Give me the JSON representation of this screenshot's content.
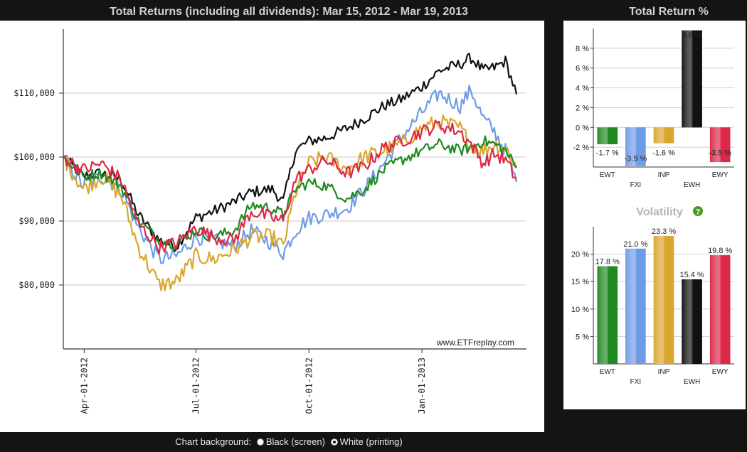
{
  "main_title": "Total Returns (including all dividends): Mar 15, 2012 - Mar 19, 2013",
  "total_return_title": "Total Return %",
  "volatility_title": "Volatility",
  "watermark": "www.ETFreplay.com",
  "background_control": {
    "label": "Chart background:",
    "options": [
      "Black (screen)",
      "White (printing)"
    ],
    "selected": "White (printing)"
  },
  "colors": {
    "EWT": "#1f8a1f",
    "FXI": "#6f9be6",
    "INP": "#d9a62e",
    "EWH": "#111111",
    "EWY": "#dc2848"
  },
  "chart_data": [
    {
      "type": "line",
      "title": "Total Returns (including all dividends): Mar 15, 2012 - Mar 19, 2013",
      "x_ticks": [
        "Apr-01-2012",
        "Jul-01-2012",
        "Oct-01-2012",
        "Jan-01-2013"
      ],
      "y_ticks": [
        "$80,000",
        "$90,000",
        "$100,000",
        "$110,000"
      ],
      "ylim": [
        70000,
        120000
      ],
      "x_range": [
        "2012-03-15",
        "2013-03-19"
      ],
      "grid": true,
      "series": [
        {
          "ticker": "EWH",
          "points": [
            [
              "2012-03-15",
              100000
            ],
            [
              "2012-03-31",
              97000
            ],
            [
              "2012-04-15",
              97500
            ],
            [
              "2012-05-01",
              96500
            ],
            [
              "2012-05-15",
              91000
            ],
            [
              "2012-06-01",
              87000
            ],
            [
              "2012-06-15",
              86000
            ],
            [
              "2012-07-01",
              90500
            ],
            [
              "2012-07-15",
              91500
            ],
            [
              "2012-08-01",
              93000
            ],
            [
              "2012-08-15",
              94500
            ],
            [
              "2012-09-01",
              95000
            ],
            [
              "2012-09-10",
              93000
            ],
            [
              "2012-09-20",
              101000
            ],
            [
              "2012-10-01",
              102500
            ],
            [
              "2012-10-15",
              103000
            ],
            [
              "2012-11-01",
              104500
            ],
            [
              "2012-11-15",
              106000
            ],
            [
              "2012-12-01",
              108000
            ],
            [
              "2012-12-15",
              109000
            ],
            [
              "2013-01-01",
              111000
            ],
            [
              "2013-01-15",
              113500
            ],
            [
              "2013-02-01",
              114500
            ],
            [
              "2013-02-10",
              115500
            ],
            [
              "2013-02-20",
              113500
            ],
            [
              "2013-03-01",
              114000
            ],
            [
              "2013-03-10",
              115000
            ],
            [
              "2013-03-19",
              109800
            ]
          ]
        },
        {
          "ticker": "FXI",
          "points": [
            [
              "2012-03-15",
              100000
            ],
            [
              "2012-03-31",
              95500
            ],
            [
              "2012-04-15",
              97000
            ],
            [
              "2012-05-01",
              95000
            ],
            [
              "2012-05-15",
              89000
            ],
            [
              "2012-06-01",
              84000
            ],
            [
              "2012-06-15",
              84500
            ],
            [
              "2012-07-01",
              87500
            ],
            [
              "2012-07-15",
              87000
            ],
            [
              "2012-08-01",
              86000
            ],
            [
              "2012-08-15",
              88500
            ],
            [
              "2012-09-01",
              86500
            ],
            [
              "2012-09-10",
              85000
            ],
            [
              "2012-09-20",
              88500
            ],
            [
              "2012-10-01",
              90500
            ],
            [
              "2012-10-15",
              91000
            ],
            [
              "2012-11-01",
              92000
            ],
            [
              "2012-11-15",
              95000
            ],
            [
              "2012-12-01",
              99000
            ],
            [
              "2012-12-15",
              103000
            ],
            [
              "2013-01-01",
              107000
            ],
            [
              "2013-01-15",
              110000
            ],
            [
              "2013-02-01",
              108000
            ],
            [
              "2013-02-10",
              110500
            ],
            [
              "2013-02-20",
              106000
            ],
            [
              "2013-03-01",
              104000
            ],
            [
              "2013-03-10",
              101000
            ],
            [
              "2013-03-19",
              96100
            ]
          ]
        },
        {
          "ticker": "INP",
          "points": [
            [
              "2012-03-15",
              100000
            ],
            [
              "2012-03-31",
              95000
            ],
            [
              "2012-04-15",
              97000
            ],
            [
              "2012-05-01",
              94000
            ],
            [
              "2012-05-15",
              86000
            ],
            [
              "2012-06-01",
              80000
            ],
            [
              "2012-06-15",
              80500
            ],
            [
              "2012-07-01",
              84500
            ],
            [
              "2012-07-15",
              84000
            ],
            [
              "2012-08-01",
              85500
            ],
            [
              "2012-08-15",
              87500
            ],
            [
              "2012-09-01",
              87500
            ],
            [
              "2012-09-10",
              86000
            ],
            [
              "2012-09-20",
              94500
            ],
            [
              "2012-10-01",
              99000
            ],
            [
              "2012-10-15",
              100000
            ],
            [
              "2012-11-01",
              98000
            ],
            [
              "2012-11-15",
              100000
            ],
            [
              "2012-12-01",
              101000
            ],
            [
              "2012-12-15",
              102000
            ],
            [
              "2013-01-01",
              104500
            ],
            [
              "2013-01-15",
              105500
            ],
            [
              "2013-02-01",
              104500
            ],
            [
              "2013-02-10",
              102000
            ],
            [
              "2013-02-20",
              101000
            ],
            [
              "2013-03-01",
              102000
            ],
            [
              "2013-03-10",
              101500
            ],
            [
              "2013-03-19",
              98400
            ]
          ]
        },
        {
          "ticker": "EWT",
          "points": [
            [
              "2012-03-15",
              100000
            ],
            [
              "2012-03-31",
              97000
            ],
            [
              "2012-04-15",
              97500
            ],
            [
              "2012-05-01",
              95500
            ],
            [
              "2012-05-15",
              90000
            ],
            [
              "2012-06-01",
              87000
            ],
            [
              "2012-06-15",
              86500
            ],
            [
              "2012-07-01",
              88500
            ],
            [
              "2012-07-15",
              87500
            ],
            [
              "2012-08-01",
              88500
            ],
            [
              "2012-08-15",
              92500
            ],
            [
              "2012-09-01",
              92000
            ],
            [
              "2012-09-10",
              91000
            ],
            [
              "2012-09-20",
              95000
            ],
            [
              "2012-10-01",
              96000
            ],
            [
              "2012-10-15",
              95500
            ],
            [
              "2012-11-01",
              93500
            ],
            [
              "2012-11-15",
              95000
            ],
            [
              "2012-12-01",
              98000
            ],
            [
              "2012-12-15",
              99500
            ],
            [
              "2013-01-01",
              101000
            ],
            [
              "2013-01-15",
              102000
            ],
            [
              "2013-02-01",
              101000
            ],
            [
              "2013-02-10",
              101500
            ],
            [
              "2013-02-20",
              102500
            ],
            [
              "2013-03-01",
              102000
            ],
            [
              "2013-03-10",
              101000
            ],
            [
              "2013-03-19",
              98300
            ]
          ]
        },
        {
          "ticker": "EWY",
          "points": [
            [
              "2012-03-15",
              100000
            ],
            [
              "2012-03-31",
              98000
            ],
            [
              "2012-04-15",
              99000
            ],
            [
              "2012-05-01",
              96500
            ],
            [
              "2012-05-15",
              89500
            ],
            [
              "2012-06-01",
              86000
            ],
            [
              "2012-06-15",
              86500
            ],
            [
              "2012-07-01",
              89000
            ],
            [
              "2012-07-15",
              87500
            ],
            [
              "2012-08-01",
              87000
            ],
            [
              "2012-08-15",
              91500
            ],
            [
              "2012-09-01",
              90500
            ],
            [
              "2012-09-10",
              90000
            ],
            [
              "2012-09-20",
              96500
            ],
            [
              "2012-10-01",
              98000
            ],
            [
              "2012-10-15",
              99500
            ],
            [
              "2012-11-01",
              97500
            ],
            [
              "2012-11-15",
              98500
            ],
            [
              "2012-12-01",
              101500
            ],
            [
              "2012-12-15",
              102500
            ],
            [
              "2013-01-01",
              104000
            ],
            [
              "2013-01-15",
              105000
            ],
            [
              "2013-02-01",
              104000
            ],
            [
              "2013-02-10",
              102000
            ],
            [
              "2013-02-20",
              99000
            ],
            [
              "2013-03-01",
              100500
            ],
            [
              "2013-03-10",
              99500
            ],
            [
              "2013-03-19",
              96500
            ]
          ]
        }
      ]
    },
    {
      "type": "bar",
      "title": "Total Return %",
      "categories": [
        "EWT",
        "FXI",
        "INP",
        "EWH",
        "EWY"
      ],
      "values": [
        -1.7,
        -3.9,
        -1.6,
        9.8,
        -3.5
      ],
      "value_labels": [
        "-1.7 %",
        "-3.9 %",
        "-1.6 %",
        "9.8 %",
        "-3.5 %"
      ],
      "y_ticks": [
        "8 %",
        "6 %",
        "4 %",
        "2 %",
        "0 %",
        "-2 %"
      ],
      "ylim": [
        -4,
        10
      ]
    },
    {
      "type": "bar",
      "title": "Volatility",
      "categories": [
        "EWT",
        "FXI",
        "INP",
        "EWH",
        "EWY"
      ],
      "values": [
        17.8,
        21.0,
        23.3,
        15.4,
        19.8
      ],
      "value_labels": [
        "17.8 %",
        "21.0 %",
        "23.3 %",
        "15.4 %",
        "19.8 %"
      ],
      "y_ticks": [
        "20 %",
        "15 %",
        "10 %",
        "5 %"
      ],
      "ylim": [
        0,
        25
      ]
    }
  ]
}
